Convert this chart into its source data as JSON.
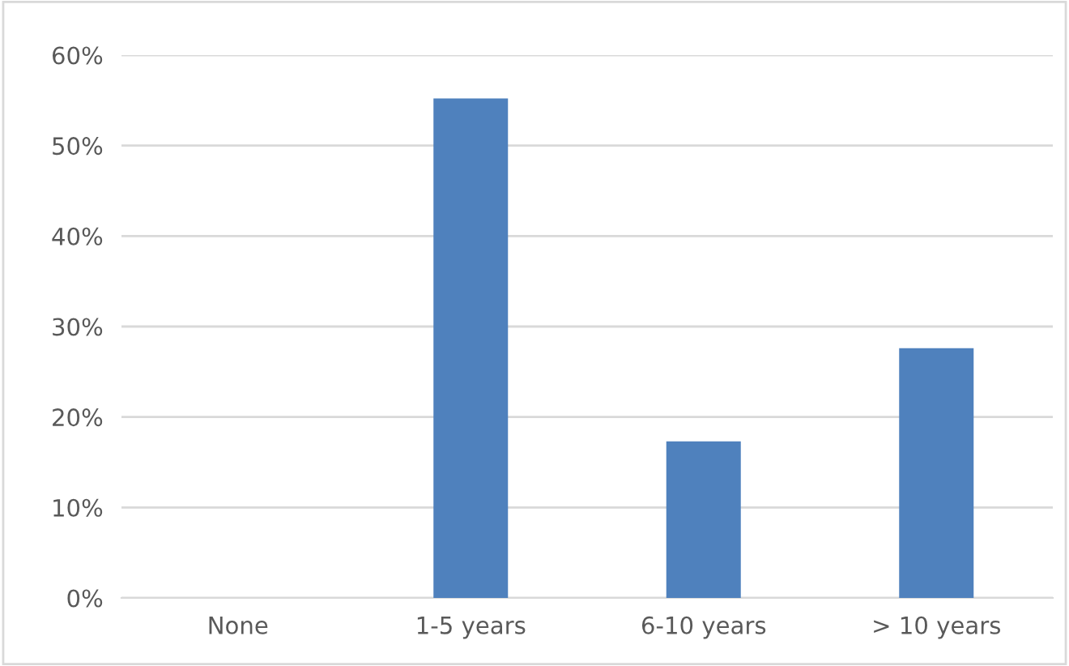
{
  "chart_data": {
    "type": "bar",
    "categories": [
      "None",
      "1-5 years",
      "6-10 years",
      "> 10 years"
    ],
    "values": [
      null,
      55.2,
      17.3,
      27.6
    ],
    "color": "#4f81bd",
    "ylim": [
      0,
      60
    ],
    "yticks": [
      {
        "value": 0,
        "label": "0%"
      },
      {
        "value": 10,
        "label": "10%"
      },
      {
        "value": 20,
        "label": "20%"
      },
      {
        "value": 30,
        "label": "30%"
      },
      {
        "value": 40,
        "label": "40%"
      },
      {
        "value": 50,
        "label": "50%"
      },
      {
        "value": 60,
        "label": "60%"
      }
    ],
    "grid": "y"
  }
}
